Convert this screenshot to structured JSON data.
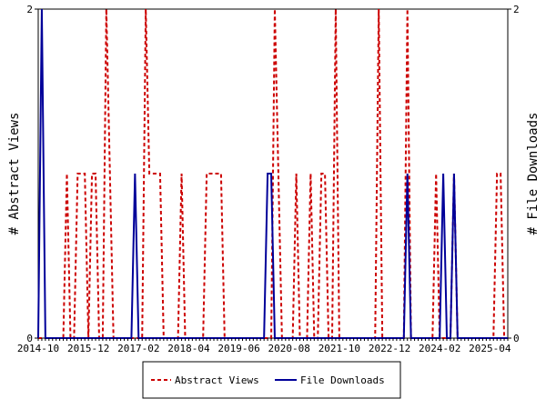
{
  "chart_data": {
    "type": "line",
    "ylabel_left": "# Abstract Views",
    "ylabel_right": "# File Downloads",
    "ylim": [
      0,
      2
    ],
    "y_ticks_left": [
      "0",
      "2"
    ],
    "y_ticks_right": [
      "0",
      "2"
    ],
    "x_range": [
      "2014-10",
      "2025-09"
    ],
    "x_tick_labels": [
      "2014-10",
      "2015-12",
      "2017-02",
      "2018-04",
      "2019-06",
      "2020-08",
      "2021-10",
      "2022-12",
      "2024-02",
      "2025-04"
    ],
    "legend_position": "bottom",
    "grid": false,
    "series": [
      {
        "name": "Abstract Views",
        "color": "#cc0000",
        "dash": "dashed",
        "axis": "left",
        "points": [
          [
            "2015-06",
            1
          ],
          [
            "2015-09",
            1
          ],
          [
            "2015-10",
            1
          ],
          [
            "2015-11",
            1
          ],
          [
            "2016-01",
            1
          ],
          [
            "2016-02",
            1
          ],
          [
            "2016-05",
            2
          ],
          [
            "2016-06",
            1
          ],
          [
            "2017-04",
            2
          ],
          [
            "2017-05",
            1
          ],
          [
            "2017-06",
            1
          ],
          [
            "2017-07",
            1
          ],
          [
            "2017-08",
            1
          ],
          [
            "2018-02",
            1
          ],
          [
            "2018-09",
            1
          ],
          [
            "2018-10",
            1
          ],
          [
            "2018-11",
            1
          ],
          [
            "2018-12",
            1
          ],
          [
            "2019-01",
            1
          ],
          [
            "2020-04",
            2
          ],
          [
            "2020-05",
            1
          ],
          [
            "2020-10",
            1
          ],
          [
            "2021-02",
            1
          ],
          [
            "2021-05",
            1
          ],
          [
            "2021-06",
            1
          ],
          [
            "2021-09",
            2
          ],
          [
            "2022-09",
            2
          ],
          [
            "2023-05",
            2
          ],
          [
            "2024-01",
            1
          ],
          [
            "2024-06",
            1
          ],
          [
            "2025-06",
            1
          ],
          [
            "2025-07",
            1
          ]
        ]
      },
      {
        "name": "File Downloads",
        "color": "#000099",
        "dash": "solid",
        "axis": "right",
        "points": [
          [
            "2014-11",
            2
          ],
          [
            "2017-01",
            1
          ],
          [
            "2020-02",
            1
          ],
          [
            "2020-03",
            1
          ],
          [
            "2023-05",
            1
          ],
          [
            "2024-03",
            1
          ],
          [
            "2024-06",
            1
          ]
        ]
      }
    ]
  }
}
